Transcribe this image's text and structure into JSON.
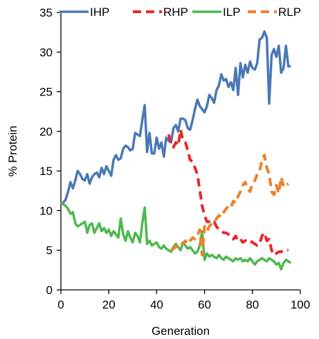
{
  "chart_data": {
    "type": "line",
    "xlabel": "Generation",
    "ylabel": "% Protein",
    "xlim": [
      0,
      100
    ],
    "ylim": [
      0,
      35
    ],
    "xticks": [
      0,
      20,
      40,
      60,
      80,
      100
    ],
    "yticks": [
      0,
      5,
      10,
      15,
      20,
      25,
      30,
      35
    ],
    "legend_position": "top",
    "grid": false,
    "series": [
      {
        "name": "IHP",
        "color": "#4a78b5",
        "style": "solid",
        "x": [
          0,
          1,
          2,
          3,
          4,
          5,
          6,
          7,
          8,
          9,
          10,
          11,
          12,
          13,
          14,
          15,
          16,
          17,
          18,
          19,
          20,
          21,
          22,
          23,
          24,
          25,
          26,
          27,
          28,
          29,
          30,
          31,
          32,
          33,
          34,
          35,
          36,
          37,
          38,
          39,
          40,
          41,
          42,
          43,
          44,
          45,
          46,
          47,
          48,
          49,
          50,
          51,
          52,
          53,
          54,
          55,
          56,
          57,
          58,
          59,
          60,
          61,
          62,
          63,
          64,
          65,
          66,
          67,
          68,
          69,
          70,
          71,
          72,
          73,
          74,
          75,
          76,
          77,
          78,
          79,
          80,
          81,
          82,
          83,
          84,
          85,
          86,
          87,
          88,
          89,
          90,
          91,
          92,
          93,
          94,
          95,
          96
        ],
        "y": [
          10.8,
          11.0,
          11.4,
          12.4,
          13.6,
          12.8,
          13.8,
          15.0,
          14.6,
          14.0,
          13.8,
          14.6,
          13.4,
          14.2,
          14.6,
          14.8,
          14.2,
          15.4,
          14.6,
          15.6,
          15.0,
          14.4,
          16.4,
          17.0,
          16.4,
          16.6,
          17.8,
          18.2,
          18.0,
          17.6,
          17.8,
          19.8,
          19.6,
          19.4,
          21.4,
          23.3,
          17.4,
          19.8,
          17.2,
          17.2,
          19.2,
          17.8,
          18.6,
          16.8,
          19.2,
          18.8,
          18.6,
          20.4,
          20.8,
          20.0,
          21.6,
          21.6,
          21.4,
          20.4,
          20.2,
          21.4,
          22.8,
          24.0,
          23.2,
          22.8,
          22.4,
          23.2,
          24.6,
          24.2,
          23.6,
          25.2,
          25.8,
          27.2,
          26.4,
          26.6,
          25.6,
          26.2,
          25.2,
          28.0,
          24.6,
          28.6,
          26.8,
          28.4,
          27.4,
          28.8,
          28.0,
          27.8,
          28.6,
          31.6,
          31.8,
          32.6,
          31.8,
          23.5,
          29.6,
          30.4,
          29.4,
          30.8,
          27.4,
          28.0,
          30.8,
          28.2,
          28.2
        ]
      },
      {
        "name": "RHP",
        "color": "#e8262b",
        "style": "dashed",
        "x": [
          45,
          46,
          47,
          48,
          49,
          50,
          51,
          52,
          53,
          54,
          55,
          56,
          57,
          58,
          59,
          60,
          61,
          62,
          63,
          64,
          65,
          66,
          67,
          68,
          69,
          70,
          71,
          72,
          73,
          74,
          75,
          76,
          77,
          78,
          79,
          80,
          81,
          82,
          83,
          84,
          85,
          86,
          87,
          88,
          89,
          90,
          91,
          92,
          93,
          94,
          95
        ],
        "y": [
          19.6,
          18.4,
          18.0,
          18.6,
          18.2,
          20.2,
          18.8,
          18.6,
          17.6,
          16.4,
          16.2,
          15.4,
          14.6,
          12.6,
          10.6,
          9.4,
          8.6,
          8.6,
          8.4,
          8.6,
          8.0,
          7.6,
          7.4,
          7.2,
          7.2,
          7.0,
          6.6,
          6.4,
          6.8,
          6.2,
          6.4,
          6.0,
          6.2,
          6.4,
          6.2,
          6.0,
          5.8,
          5.6,
          5.8,
          6.8,
          7.2,
          6.2,
          6.4,
          5.0,
          4.4,
          4.6,
          4.8,
          4.8,
          5.0,
          5.0,
          5.0
        ]
      },
      {
        "name": "ILP",
        "color": "#4db84e",
        "style": "solid",
        "x": [
          0,
          1,
          2,
          3,
          4,
          5,
          6,
          7,
          8,
          9,
          10,
          11,
          12,
          13,
          14,
          15,
          16,
          17,
          18,
          19,
          20,
          21,
          22,
          23,
          24,
          25,
          26,
          27,
          28,
          29,
          30,
          31,
          32,
          33,
          34,
          35,
          36,
          37,
          38,
          39,
          40,
          41,
          42,
          43,
          44,
          45,
          46,
          47,
          48,
          49,
          50,
          51,
          52,
          53,
          54,
          55,
          56,
          57,
          58,
          59,
          60,
          61,
          62,
          63,
          64,
          65,
          66,
          67,
          68,
          69,
          70,
          71,
          72,
          73,
          74,
          75,
          76,
          77,
          78,
          79,
          80,
          81,
          82,
          83,
          84,
          85,
          86,
          87,
          88,
          89,
          90,
          91,
          92,
          93,
          94,
          95,
          96
        ],
        "y": [
          11.0,
          10.8,
          10.6,
          10.2,
          9.6,
          9.8,
          8.4,
          8.0,
          8.2,
          8.4,
          8.6,
          7.2,
          8.2,
          8.4,
          7.2,
          7.8,
          8.4,
          7.4,
          7.8,
          7.2,
          7.6,
          6.8,
          7.4,
          7.0,
          6.6,
          9.0,
          7.0,
          6.2,
          7.4,
          6.6,
          6.0,
          7.2,
          6.8,
          6.0,
          8.4,
          10.4,
          5.8,
          6.2,
          5.6,
          5.8,
          6.0,
          5.4,
          5.2,
          5.6,
          5.2,
          5.0,
          4.8,
          5.4,
          5.8,
          5.4,
          5.0,
          6.0,
          5.6,
          5.2,
          5.4,
          5.0,
          4.6,
          4.8,
          5.6,
          7.4,
          3.8,
          4.6,
          4.2,
          4.4,
          4.2,
          4.0,
          4.4,
          4.0,
          3.8,
          4.2,
          4.0,
          3.8,
          3.6,
          4.0,
          3.8,
          4.0,
          3.6,
          3.8,
          3.6,
          4.0,
          3.6,
          3.2,
          3.6,
          3.8,
          4.0,
          3.8,
          3.6,
          4.0,
          3.8,
          3.6,
          3.2,
          3.4,
          2.6,
          3.4,
          3.8,
          3.6,
          3.4
        ]
      },
      {
        "name": "RLP",
        "color": "#f07f2a",
        "style": "dashed",
        "x": [
          46,
          47,
          48,
          49,
          50,
          51,
          52,
          53,
          54,
          55,
          56,
          57,
          58,
          59,
          60,
          61,
          62,
          63,
          64,
          65,
          66,
          67,
          68,
          69,
          70,
          71,
          72,
          73,
          74,
          75,
          76,
          77,
          78,
          79,
          80,
          81,
          82,
          83,
          84,
          85,
          86,
          87,
          88,
          89,
          90,
          91,
          92,
          93,
          94,
          95
        ],
        "y": [
          5.0,
          5.2,
          5.4,
          5.6,
          6.0,
          5.8,
          6.2,
          5.8,
          6.2,
          6.6,
          6.4,
          6.8,
          7.6,
          4.4,
          8.0,
          7.4,
          8.0,
          8.4,
          8.6,
          9.0,
          9.4,
          9.2,
          9.8,
          10.2,
          10.6,
          10.4,
          11.2,
          11.0,
          11.8,
          12.4,
          13.2,
          13.6,
          12.8,
          12.4,
          13.4,
          13.8,
          14.6,
          15.0,
          16.4,
          17.0,
          15.4,
          14.6,
          12.4,
          12.0,
          13.2,
          12.2,
          14.2,
          13.0,
          13.2,
          13.4
        ]
      }
    ]
  }
}
